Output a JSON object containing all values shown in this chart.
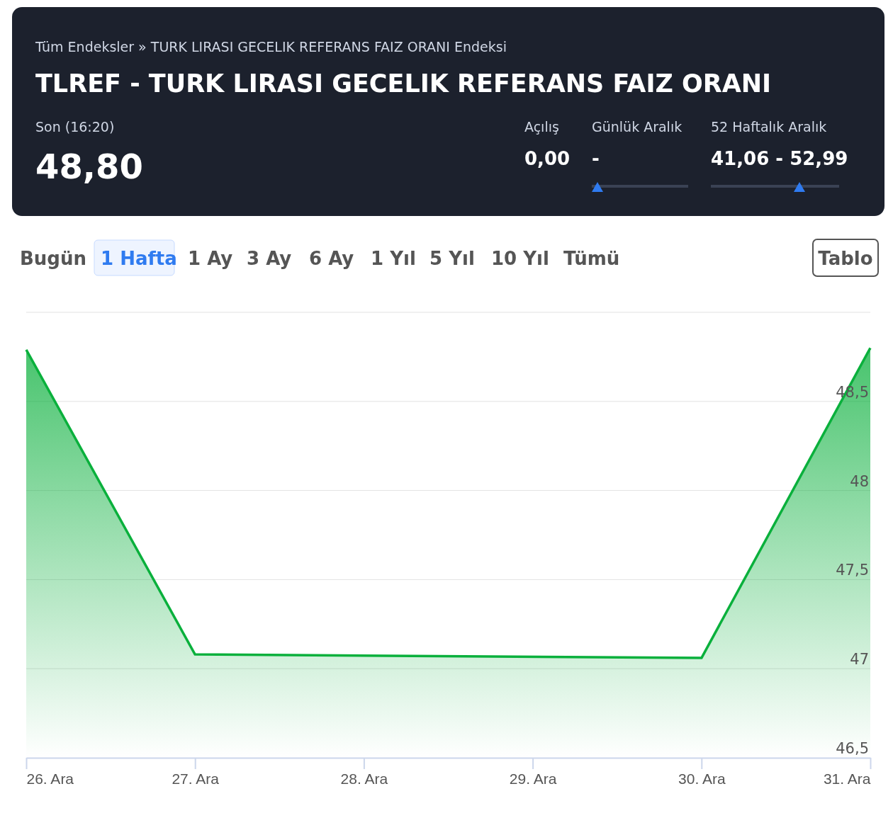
{
  "chart_data": {
    "type": "area",
    "title": "TLREF - TURK LIRASI GECELIK REFERANS FAIZ ORANI",
    "subtitle": "Tüm Endeksler »  TURK LIRASI GECELIK REFERANS FAIZ ORANI Endeksi",
    "annotations": [
      "Son (16:20)",
      "48,80",
      "Açılış",
      "0,00",
      "Günlük Aralık",
      "-",
      "52 Haftalık Aralık",
      "41,06 - 52,99",
      "Bugün",
      "1 Hafta",
      "1 Ay",
      "3 Ay",
      "6 Ay",
      "1 Yıl",
      "5 Yıl",
      "10 Yıl",
      "Tümü",
      "Tablo"
    ],
    "x": [
      "--12-26",
      "--12-27",
      "--12-30",
      "--12-31"
    ],
    "series": [
      {
        "color": "#0ab03c",
        "values": [
          48.79,
          47.08,
          47.06,
          48.8
        ]
      }
    ],
    "xlim": [
      "--12-26",
      "--12-31"
    ],
    "xticks": [
      {
        "value": "--12-26",
        "label": "26. Ara"
      },
      {
        "value": "--12-27",
        "label": "27. Ara"
      },
      {
        "value": "--12-28",
        "label": "28. Ara"
      },
      {
        "value": "--12-29",
        "label": "29. Ara"
      },
      {
        "value": "--12-30",
        "label": "30. Ara"
      },
      {
        "value": "--12-31",
        "label": "31. Ara"
      }
    ],
    "ylim": [
      46.5,
      49
    ],
    "yticks": [
      {
        "value": 46.5,
        "label": "46,5"
      },
      {
        "value": 47,
        "label": "47"
      },
      {
        "value": 47.5,
        "label": "47,5"
      },
      {
        "value": 48,
        "label": "48"
      },
      {
        "value": 48.5,
        "label": "48,5"
      },
      {
        "value": 49,
        "label": null
      }
    ],
    "grid": "y",
    "marker": "none",
    "line_style": "solid"
  }
}
